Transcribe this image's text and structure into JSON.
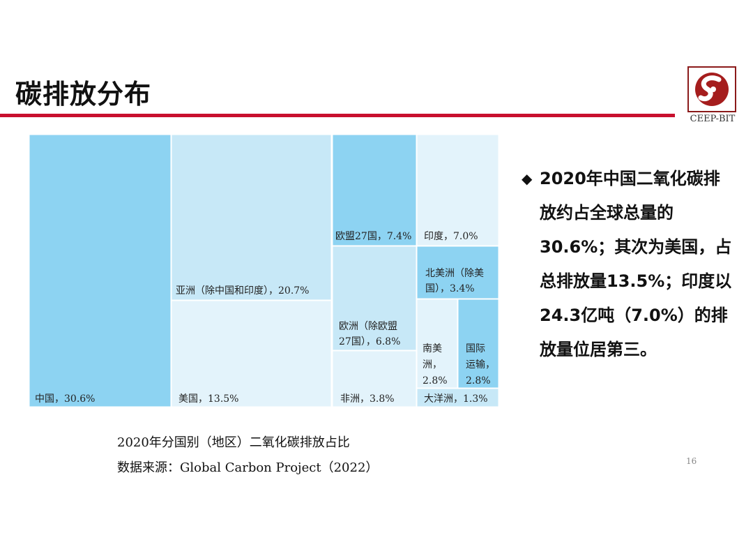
{
  "slide": {
    "title": "碳排放分布",
    "logo_text": "CEEP-BIT",
    "bullet_text": "2020年中国二氧化碳排放约占全球总量的30.6%；其次为美国，占总排放量13.5%；印度以24.3亿吨（7.0%）的排放量位居第三。",
    "caption": "2020年分国别（地区）二氧化碳排放占比",
    "source": "数据来源：Global Carbon Project（2022）",
    "page_number": "16",
    "accent_color": "#c8102e"
  },
  "chart_data": {
    "type": "treemap",
    "title": "2020年分国别（地区）二氧化碳排放占比",
    "unit": "%",
    "colors": {
      "dark": "#8dd3f2",
      "mid": "#c7e8f7",
      "light": "#e3f3fb"
    },
    "items": [
      {
        "name": "中国",
        "value": 30.6,
        "label_lines": [
          "中国，30.6%"
        ],
        "shade": "dark"
      },
      {
        "name": "亚洲（除中国和印度）",
        "value": 20.7,
        "label_lines": [
          "亚洲（除中国和印度），20.7%"
        ],
        "shade": "mid"
      },
      {
        "name": "美国",
        "value": 13.5,
        "label_lines": [
          "美国，13.5%"
        ],
        "shade": "light"
      },
      {
        "name": "欧盟27国",
        "value": 7.4,
        "label_lines": [
          "欧盟27国，7.4%"
        ],
        "shade": "dark"
      },
      {
        "name": "印度",
        "value": 7.0,
        "label_lines": [
          "印度，7.0%"
        ],
        "shade": "light"
      },
      {
        "name": "欧洲（除欧盟27国）",
        "value": 6.8,
        "label_lines": [
          "欧洲（除欧盟",
          "27国），6.8%"
        ],
        "shade": "mid"
      },
      {
        "name": "非洲",
        "value": 3.8,
        "label_lines": [
          "非洲，3.8%"
        ],
        "shade": "light"
      },
      {
        "name": "北美洲（除美国）",
        "value": 3.4,
        "label_lines": [
          "北美洲（除美",
          "国），3.4%"
        ],
        "shade": "dark"
      },
      {
        "name": "南美洲",
        "value": 2.8,
        "label_lines": [
          "南美",
          "洲，",
          "2.8%"
        ],
        "shade": "light"
      },
      {
        "name": "国际运输",
        "value": 2.8,
        "label_lines": [
          "国际",
          "运输，",
          "2.8%"
        ],
        "shade": "dark"
      },
      {
        "name": "大洋洲",
        "value": 1.3,
        "label_lines": [
          "大洋洲，1.3%"
        ],
        "shade": "mid"
      }
    ]
  }
}
